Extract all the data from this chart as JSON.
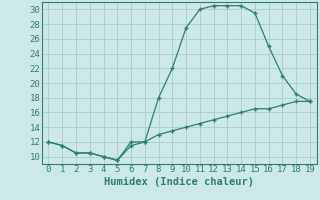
{
  "xlabel": "Humidex (Indice chaleur)",
  "ylabel": "",
  "x": [
    0,
    1,
    2,
    3,
    4,
    5,
    6,
    7,
    8,
    9,
    10,
    11,
    12,
    13,
    14,
    15,
    16,
    17,
    18,
    19
  ],
  "curve1_y": [
    12,
    11.5,
    10.5,
    10.5,
    10,
    9.5,
    12,
    12,
    18,
    22,
    27.5,
    30,
    30.5,
    30.5,
    30.5,
    29.5,
    25,
    21,
    18.5,
    17.5
  ],
  "curve2_y": [
    12,
    11.5,
    10.5,
    10.5,
    10,
    9.5,
    11.5,
    12,
    13,
    13.5,
    14,
    14.5,
    15,
    15.5,
    16,
    16.5,
    16.5,
    17,
    17.5,
    17.5
  ],
  "line_color": "#2e7d6e",
  "bg_color": "#cce8e8",
  "grid_color": "#aacccc",
  "ylim": [
    9,
    31
  ],
  "xlim": [
    -0.5,
    19.5
  ],
  "yticks": [
    10,
    12,
    14,
    16,
    18,
    20,
    22,
    24,
    26,
    28,
    30
  ],
  "xticks": [
    0,
    1,
    2,
    3,
    4,
    5,
    6,
    7,
    8,
    9,
    10,
    11,
    12,
    13,
    14,
    15,
    16,
    17,
    18,
    19
  ],
  "tick_fontsize": 6.5,
  "xlabel_fontsize": 7.5
}
